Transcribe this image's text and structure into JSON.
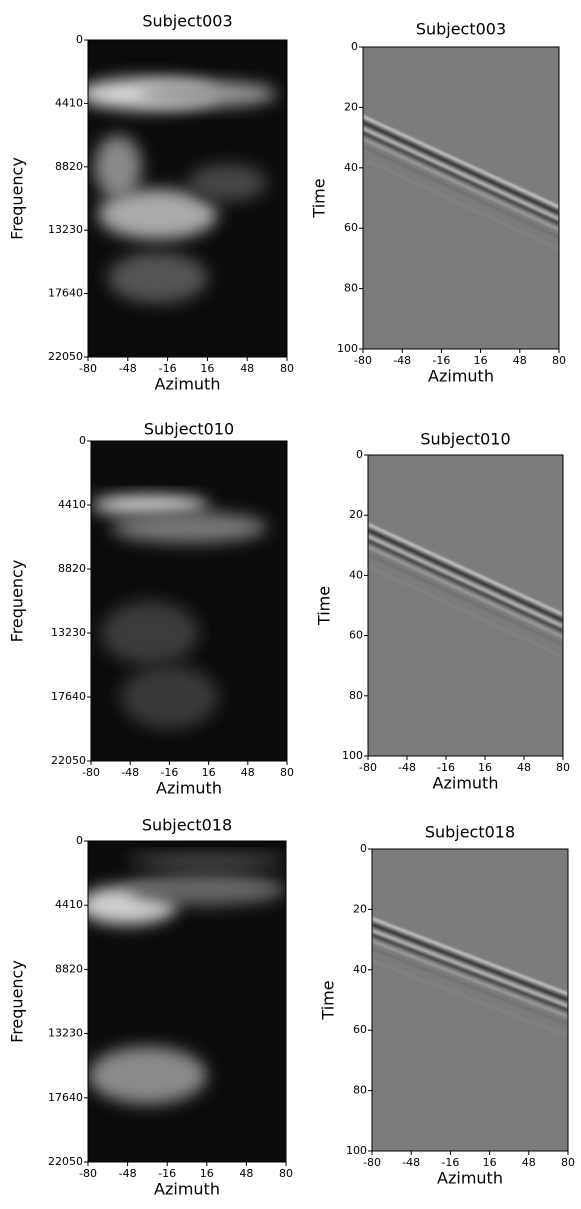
{
  "chart_data": [
    {
      "type": "heatmap",
      "title": "Subject003",
      "xlabel": "Azimuth",
      "ylabel": "Frequency",
      "xlim": [
        -80,
        80
      ],
      "xticks": [
        -80,
        -48,
        -16,
        16,
        48,
        80
      ],
      "ylim": [
        0,
        22050
      ],
      "yticks": [
        0,
        4410,
        8820,
        13230,
        17640,
        22050
      ],
      "y_inverted": true,
      "colormap": "gray"
    },
    {
      "type": "heatmap",
      "title": "Subject003",
      "xlabel": "Azimuth",
      "ylabel": "Time",
      "xlim": [
        -80,
        80
      ],
      "xticks": [
        -80,
        -48,
        -16,
        16,
        48,
        80
      ],
      "ylim": [
        0,
        100
      ],
      "yticks": [
        0,
        20,
        40,
        60,
        80,
        100
      ],
      "y_inverted": true,
      "colormap": "gray"
    },
    {
      "type": "heatmap",
      "title": "Subject010",
      "xlabel": "Azimuth",
      "ylabel": "Frequency",
      "xlim": [
        -80,
        80
      ],
      "xticks": [
        -80,
        -48,
        -16,
        16,
        48,
        80
      ],
      "ylim": [
        0,
        22050
      ],
      "yticks": [
        0,
        4410,
        8820,
        13230,
        17640,
        22050
      ],
      "y_inverted": true,
      "colormap": "gray"
    },
    {
      "type": "heatmap",
      "title": "Subject010",
      "xlabel": "Azimuth",
      "ylabel": "Time",
      "xlim": [
        -80,
        80
      ],
      "xticks": [
        -80,
        -48,
        -16,
        16,
        48,
        80
      ],
      "ylim": [
        0,
        100
      ],
      "yticks": [
        0,
        20,
        40,
        60,
        80,
        100
      ],
      "y_inverted": true,
      "colormap": "gray"
    },
    {
      "type": "heatmap",
      "title": "Subject018",
      "xlabel": "Azimuth",
      "ylabel": "Frequency",
      "xlim": [
        -80,
        80
      ],
      "xticks": [
        -80,
        -48,
        -16,
        16,
        48,
        80
      ],
      "ylim": [
        0,
        22050
      ],
      "yticks": [
        0,
        4410,
        8820,
        13230,
        17640,
        22050
      ],
      "y_inverted": true,
      "colormap": "gray"
    },
    {
      "type": "heatmap",
      "title": "Subject018",
      "xlabel": "Azimuth",
      "ylabel": "Time",
      "xlim": [
        -80,
        80
      ],
      "xticks": [
        -80,
        -48,
        -16,
        16,
        48,
        80
      ],
      "ylim": [
        0,
        100
      ],
      "yticks": [
        0,
        20,
        40,
        60,
        80,
        100
      ],
      "y_inverted": true,
      "colormap": "gray"
    }
  ]
}
